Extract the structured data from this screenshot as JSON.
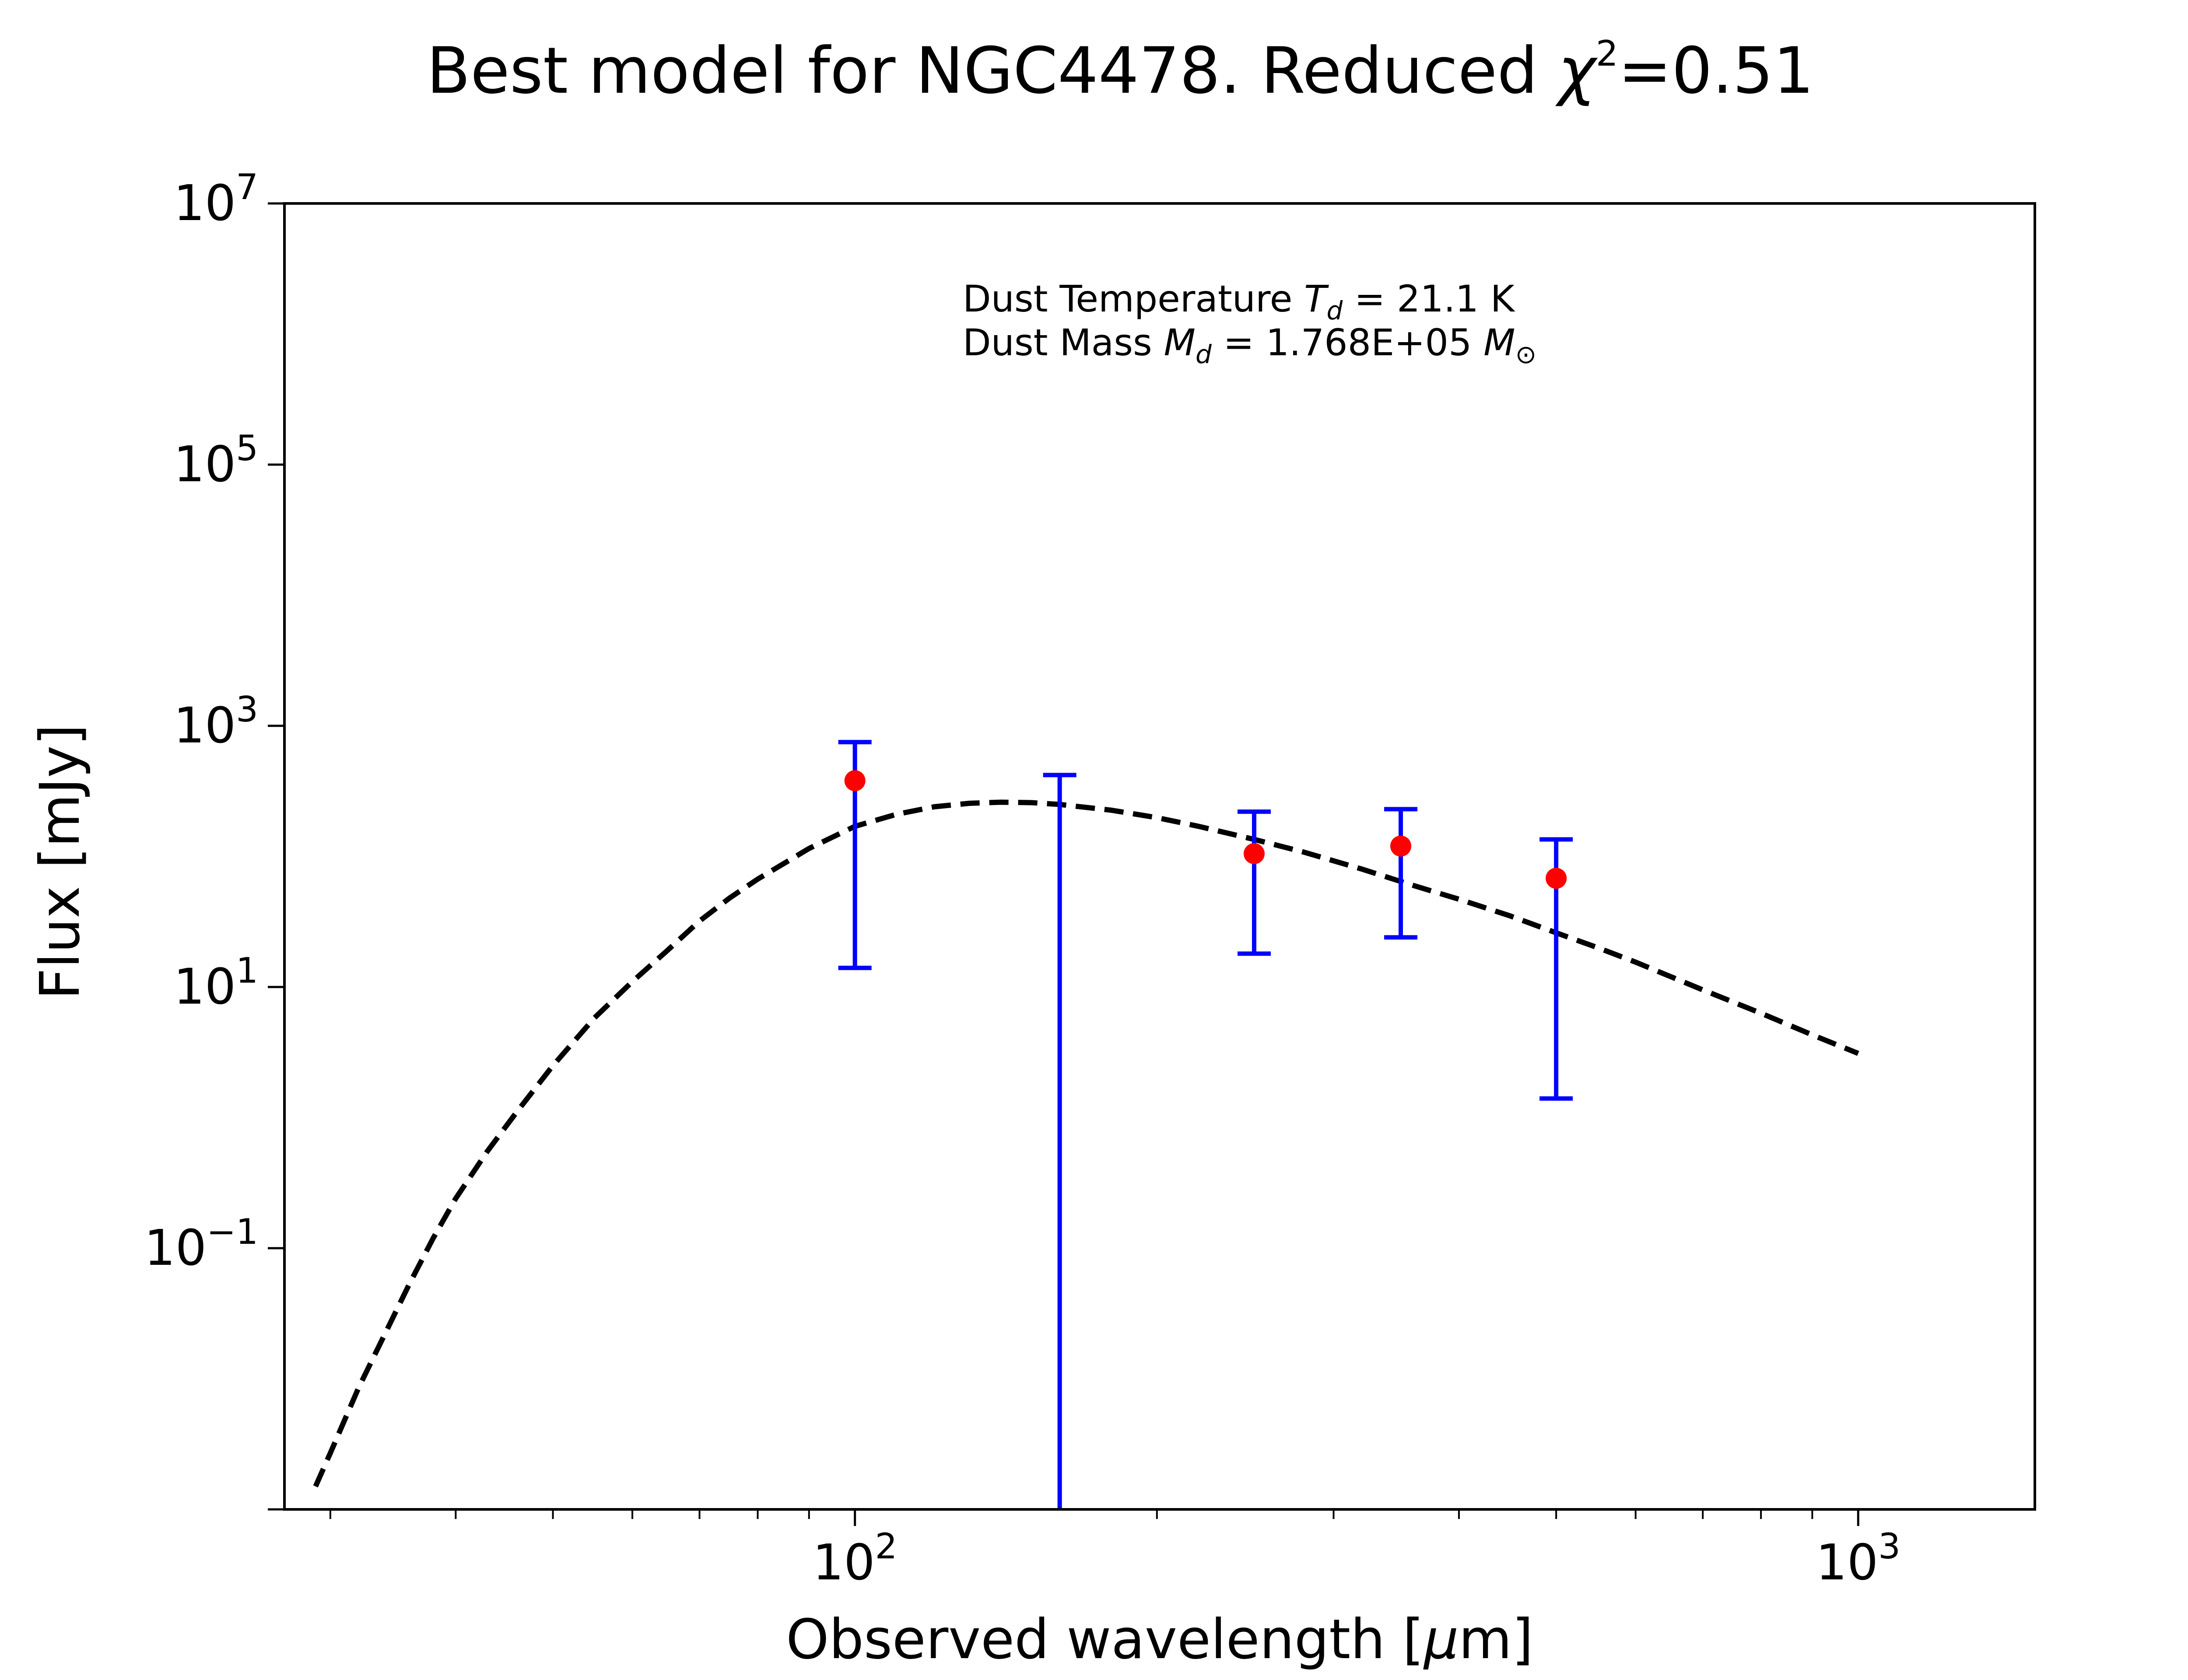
{
  "chart_data": {
    "type": "scatter",
    "title": {
      "prefix": "Best model for NGC4478. Reduced ",
      "chi_symbol": "χ",
      "chi_exponent": "2",
      "suffix": "=0.51"
    },
    "xlabel": {
      "prefix": "Observed wavelength [",
      "mu": "μ",
      "suffix": "m]"
    },
    "ylabel": "Flux [mJy]",
    "xscale": "log",
    "yscale": "log",
    "xlim": [
      27,
      1500
    ],
    "ylim": [
      0.001,
      10000000
    ],
    "x_ticks": [
      {
        "value": 100,
        "base": "10",
        "exp": "2"
      },
      {
        "value": 1000,
        "base": "10",
        "exp": "3"
      }
    ],
    "y_ticks": [
      {
        "value": 0.1,
        "base": "10",
        "exp": "−1"
      },
      {
        "value": 10,
        "base": "10",
        "exp": "1"
      },
      {
        "value": 1000,
        "base": "10",
        "exp": "3"
      },
      {
        "value": 100000,
        "base": "10",
        "exp": "5"
      },
      {
        "value": 10000000,
        "base": "10",
        "exp": "7"
      }
    ],
    "annotation": {
      "temperature": {
        "prefix": "Dust Temperature ",
        "symbol": "T",
        "subscript": "d",
        "value": " = 21.1 K"
      },
      "mass": {
        "prefix": "Dust Mass ",
        "symbol": "M",
        "subscript": "d",
        "value": " = 1.768E+05 ",
        "unit_symbol": "M",
        "unit_subscript": "⊙"
      }
    },
    "series": [
      {
        "kind": "model",
        "color": "#000000",
        "line_style": "dashed",
        "x": [
          29,
          30,
          32,
          34,
          36,
          38,
          40,
          43,
          46,
          50,
          55,
          60,
          65,
          70,
          75,
          80,
          90,
          100,
          110,
          120,
          130,
          140,
          150,
          160,
          180,
          200,
          220,
          250,
          280,
          320,
          360,
          400,
          450,
          500,
          550,
          600,
          700,
          800,
          900,
          1000
        ],
        "y": [
          0.0015,
          0.0027,
          0.0085,
          0.022,
          0.054,
          0.12,
          0.24,
          0.55,
          1.1,
          2.5,
          5.8,
          11,
          19,
          32,
          48,
          67,
          115,
          170,
          210,
          240,
          255,
          260,
          258,
          250,
          226,
          198,
          170,
          135,
          108,
          80,
          60,
          47,
          35,
          26,
          20,
          15.5,
          9.5,
          6.3,
          4.3,
          3.1
        ]
      },
      {
        "kind": "observed",
        "color": "#ff0000",
        "error_color": "#0000ff",
        "points": [
          {
            "x": 100,
            "y": 380,
            "y_low": 14,
            "y_high": 750
          },
          {
            "x": 160,
            "y": null,
            "y_low": 0.001,
            "y_high": 420
          },
          {
            "x": 250,
            "y": 105,
            "y_low": 18,
            "y_high": 220
          },
          {
            "x": 350,
            "y": 120,
            "y_low": 24,
            "y_high": 230
          },
          {
            "x": 500,
            "y": 68,
            "y_low": 1.4,
            "y_high": 135
          }
        ]
      }
    ]
  }
}
